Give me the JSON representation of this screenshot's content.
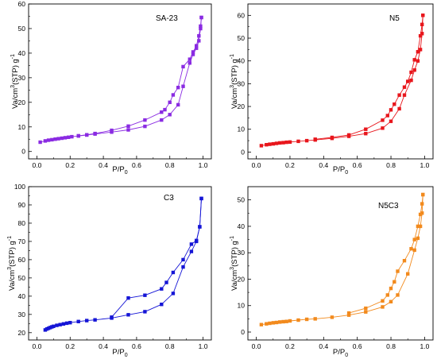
{
  "chart_data": [
    {
      "type": "scatter",
      "title": "SA-23",
      "xlabel": "P/P",
      "xlabel_sub": "0",
      "ylabel": "Va/cm",
      "ylabel_sup": "3",
      "ylabel_rest": "(STP) g",
      "ylabel_sup2": "-1",
      "xlim": [
        -0.05,
        1.05
      ],
      "ylim": [
        -3,
        60
      ],
      "xticks": [
        0.0,
        0.2,
        0.4,
        0.6,
        0.8,
        1.0
      ],
      "xtick_labels": [
        "0.0",
        "0.2",
        "0.4",
        "0.6",
        "0.8",
        "1.0"
      ],
      "yticks": [
        0,
        10,
        20,
        30,
        40,
        50,
        60
      ],
      "ytick_labels": [
        "0",
        "10",
        "20",
        "30",
        "40",
        "50",
        "60"
      ],
      "color": "#8a2be2",
      "series": [
        {
          "x": [
            0.02,
            0.05,
            0.07,
            0.09,
            0.11,
            0.13,
            0.15,
            0.17,
            0.19,
            0.21,
            0.25,
            0.3,
            0.35,
            0.45,
            0.55,
            0.65,
            0.75,
            0.8,
            0.85,
            0.88,
            0.92,
            0.94,
            0.96,
            0.975,
            0.985,
            0.99
          ],
          "y": [
            3.8,
            4.3,
            4.6,
            4.8,
            5.0,
            5.2,
            5.4,
            5.6,
            5.8,
            6.0,
            6.3,
            6.7,
            7.1,
            7.9,
            8.8,
            10.2,
            12.8,
            15.0,
            19.0,
            26.5,
            36.0,
            39.5,
            42.0,
            45.0,
            50.0,
            54.5
          ]
        },
        {
          "x": [
            0.99,
            0.985,
            0.975,
            0.96,
            0.94,
            0.92,
            0.88,
            0.85,
            0.82,
            0.8,
            0.77,
            0.75,
            0.65,
            0.55,
            0.45,
            0.35,
            0.3,
            0.25
          ],
          "y": [
            54.5,
            51.0,
            47.0,
            43.0,
            40.5,
            37.5,
            34.5,
            26.0,
            23.0,
            20.0,
            17.0,
            16.0,
            12.8,
            10.3,
            8.6,
            7.3,
            6.8,
            6.4
          ]
        }
      ]
    },
    {
      "type": "scatter",
      "title": "N5",
      "xlabel": "P/P",
      "xlabel_sub": "0",
      "ylabel": "Va/cm",
      "ylabel_sup": "3",
      "ylabel_rest": "(STP) g",
      "ylabel_sup2": "-1",
      "xlim": [
        -0.05,
        1.05
      ],
      "ylim": [
        -3,
        65
      ],
      "xticks": [
        0.0,
        0.2,
        0.4,
        0.6,
        0.8,
        1.0
      ],
      "xtick_labels": [
        "0.0",
        "0.2",
        "0.4",
        "0.6",
        "0.8",
        "1.0"
      ],
      "yticks": [
        0,
        10,
        20,
        30,
        40,
        50,
        60
      ],
      "ytick_labels": [
        "0",
        "10",
        "20",
        "30",
        "40",
        "50",
        "60"
      ],
      "color": "#e8161c",
      "series": [
        {
          "x": [
            0.03,
            0.06,
            0.08,
            0.1,
            0.12,
            0.14,
            0.16,
            0.18,
            0.2,
            0.25,
            0.3,
            0.35,
            0.45,
            0.55,
            0.65,
            0.75,
            0.8,
            0.85,
            0.88,
            0.92,
            0.94,
            0.96,
            0.975,
            0.985,
            0.99
          ],
          "y": [
            2.8,
            3.2,
            3.4,
            3.6,
            3.8,
            4.0,
            4.1,
            4.3,
            4.4,
            4.7,
            5.0,
            5.3,
            6.0,
            6.9,
            8.1,
            10.5,
            13.5,
            19.0,
            25.0,
            31.5,
            36.0,
            40.0,
            45.0,
            52.0,
            60.0
          ]
        },
        {
          "x": [
            0.99,
            0.985,
            0.975,
            0.96,
            0.94,
            0.92,
            0.9,
            0.88,
            0.85,
            0.82,
            0.8,
            0.78,
            0.75,
            0.65,
            0.55,
            0.45,
            0.35
          ],
          "y": [
            60.0,
            56.0,
            51.0,
            44.0,
            40.5,
            35.0,
            31.0,
            28.5,
            25.0,
            21.0,
            18.5,
            16.0,
            14.0,
            10.0,
            7.5,
            6.4,
            5.6
          ]
        }
      ]
    },
    {
      "type": "scatter",
      "title": "C3",
      "xlabel": "P/P",
      "xlabel_sub": "0",
      "ylabel": "Va/cm",
      "ylabel_sup": "3",
      "ylabel_rest": "(STP) g",
      "ylabel_sup2": "-1",
      "xlim": [
        -0.05,
        1.05
      ],
      "ylim": [
        16,
        100
      ],
      "xticks": [
        0.0,
        0.2,
        0.4,
        0.6,
        0.8,
        1.0
      ],
      "xtick_labels": [
        "0.0",
        "0.2",
        "0.4",
        "0.6",
        "0.8",
        "1.0"
      ],
      "yticks": [
        20,
        30,
        40,
        50,
        60,
        70,
        80,
        90,
        100
      ],
      "ytick_labels": [
        "20",
        "30",
        "40",
        "50",
        "60",
        "70",
        "80",
        "90",
        "100"
      ],
      "color": "#1515d6",
      "series": [
        {
          "x": [
            0.05,
            0.06,
            0.07,
            0.08,
            0.09,
            0.1,
            0.12,
            0.14,
            0.16,
            0.18,
            0.2,
            0.25,
            0.3,
            0.35,
            0.45,
            0.55,
            0.65,
            0.75,
            0.82,
            0.88,
            0.93,
            0.96,
            0.98,
            0.99
          ],
          "y": [
            21.5,
            22.0,
            22.4,
            22.8,
            23.2,
            23.5,
            24.0,
            24.4,
            24.8,
            25.2,
            25.5,
            26.1,
            26.6,
            27.0,
            28.0,
            29.8,
            31.5,
            35.5,
            41.5,
            56.0,
            64.5,
            70.0,
            78.0,
            93.5
          ]
        },
        {
          "x": [
            0.99,
            0.98,
            0.96,
            0.93,
            0.88,
            0.82,
            0.78,
            0.75,
            0.65,
            0.55,
            0.45
          ],
          "y": [
            93.5,
            78.0,
            70.5,
            68.5,
            60.0,
            53.0,
            47.5,
            44.0,
            40.5,
            39.0,
            28.5
          ]
        }
      ]
    },
    {
      "type": "scatter",
      "title": "N5C3",
      "xlabel": "P/P",
      "xlabel_sub": "0",
      "ylabel": "Va/cm",
      "ylabel_sup": "3",
      "ylabel_rest": "(STP) g",
      "ylabel_sup2": "-1",
      "xlim": [
        -0.05,
        1.05
      ],
      "ylim": [
        -3,
        55
      ],
      "xticks": [
        0.0,
        0.2,
        0.4,
        0.6,
        0.8,
        1.0
      ],
      "xtick_labels": [
        "0.0",
        "0.2",
        "0.4",
        "0.6",
        "0.8",
        "1.0"
      ],
      "yticks": [
        0,
        10,
        20,
        30,
        40,
        50
      ],
      "ytick_labels": [
        "0",
        "10",
        "20",
        "30",
        "40",
        "50"
      ],
      "color": "#f28a1d",
      "series": [
        {
          "x": [
            0.03,
            0.06,
            0.08,
            0.1,
            0.12,
            0.14,
            0.16,
            0.18,
            0.2,
            0.25,
            0.3,
            0.35,
            0.45,
            0.55,
            0.65,
            0.75,
            0.8,
            0.84,
            0.9,
            0.94,
            0.96,
            0.975,
            0.985,
            0.99
          ],
          "y": [
            2.8,
            3.1,
            3.3,
            3.5,
            3.6,
            3.8,
            3.9,
            4.0,
            4.2,
            4.5,
            4.8,
            5.0,
            5.6,
            6.4,
            7.6,
            9.5,
            11.5,
            14.0,
            22.0,
            31.0,
            35.5,
            40.0,
            45.0,
            52.0
          ]
        },
        {
          "x": [
            0.99,
            0.985,
            0.975,
            0.96,
            0.94,
            0.92,
            0.88,
            0.84,
            0.82,
            0.8,
            0.78,
            0.75,
            0.65,
            0.55
          ],
          "y": [
            52.0,
            48.5,
            44.5,
            40.0,
            35.0,
            31.5,
            27.0,
            23.0,
            19.0,
            16.5,
            14.0,
            11.8,
            9.0,
            7.2
          ]
        }
      ]
    }
  ]
}
